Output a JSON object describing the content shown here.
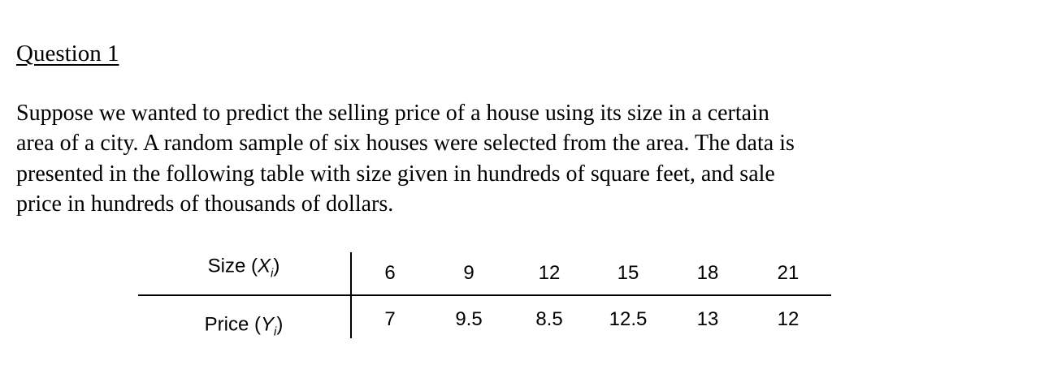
{
  "question": {
    "title": "Question 1",
    "paragraph_lines": [
      "Suppose we wanted to predict the selling price of a house using its size in a certain",
      "area of a city. A random sample of six houses were selected from the area. The data is",
      "presented in the following table with size given in hundreds of square feet, and sale",
      "price in hundreds of thousands of dollars."
    ]
  },
  "table": {
    "rows": [
      {
        "label": [
          "Size (",
          "X",
          "i",
          ")"
        ],
        "values": [
          6,
          9,
          12,
          15,
          18,
          21
        ]
      },
      {
        "label": [
          "Price (",
          "Y",
          "i",
          ")"
        ],
        "values": [
          7,
          9.5,
          8.5,
          12.5,
          13,
          12
        ]
      }
    ]
  }
}
